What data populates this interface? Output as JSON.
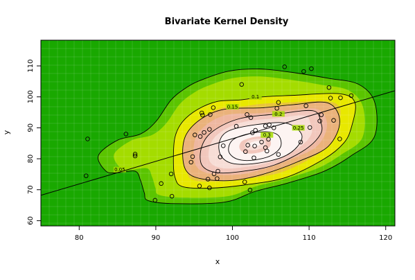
{
  "chart_data": {
    "type": "scatter",
    "title": "Bivariate Kernel Density",
    "xlabel": "x",
    "ylabel": "y",
    "xlim": [
      75,
      121.2
    ],
    "ylim": [
      58.3,
      118.3
    ],
    "x_ticks": [
      80,
      90,
      100,
      110,
      120
    ],
    "x_tick_labels": [
      "80",
      "90",
      "100",
      "110",
      "120"
    ],
    "y_ticks": [
      60,
      70,
      80,
      90,
      100,
      110
    ],
    "y_tick_labels": [
      "60",
      "70",
      "80",
      "90",
      "100",
      "110"
    ],
    "density_peak": {
      "x": 103,
      "y": 85
    },
    "density_colors": [
      "#19a800",
      "#5ac400",
      "#a4dc00",
      "#e8e800",
      "#e8c43a",
      "#eab27a",
      "#eeb7a0",
      "#f2c7bc",
      "#f7ddd6",
      "#fdf4f2"
    ],
    "contours": [
      {
        "level": "0.05",
        "label_at": [
          85.3,
          76.5
        ],
        "points": [
          [
            118.5,
            87
          ],
          [
            118.6,
            98
          ],
          [
            116.5,
            104
          ],
          [
            112.5,
            106
          ],
          [
            107.5,
            108
          ],
          [
            103.5,
            109
          ],
          [
            99.5,
            108.3
          ],
          [
            96,
            105.5
          ],
          [
            94,
            103
          ],
          [
            92,
            99
          ],
          [
            90,
            92
          ],
          [
            88,
            88
          ],
          [
            85,
            86
          ],
          [
            82.5,
            81
          ],
          [
            83.5,
            76
          ],
          [
            85,
            75.5
          ],
          [
            87.3,
            76
          ],
          [
            88,
            73
          ],
          [
            88.5,
            69
          ],
          [
            89,
            66.5
          ],
          [
            92.5,
            65.5
          ],
          [
            99,
            66
          ],
          [
            103,
            69.5
          ],
          [
            107,
            72
          ],
          [
            112,
            76
          ],
          [
            115.5,
            81
          ]
        ]
      },
      {
        "level": "0.1",
        "label_at": [
          103,
          100
        ],
        "points": [
          [
            115.5,
            90
          ],
          [
            116,
            98
          ],
          [
            114,
            101
          ],
          [
            108,
            100.5
          ],
          [
            104,
            100
          ],
          [
            101,
            99
          ],
          [
            98,
            98.5
          ],
          [
            95.5,
            96
          ],
          [
            93.5,
            92
          ],
          [
            92.5,
            87
          ],
          [
            92.3,
            80
          ],
          [
            92.5,
            74
          ],
          [
            93.5,
            71
          ],
          [
            97,
            70.5
          ],
          [
            101.5,
            71.5
          ],
          [
            107,
            74
          ],
          [
            112,
            80
          ],
          [
            114.5,
            85
          ]
        ]
      },
      {
        "level": "0.15",
        "label_at": [
          100,
          96.8
        ],
        "points": [
          [
            114,
            92
          ],
          [
            112.5,
            98
          ],
          [
            108,
            97.5
          ],
          [
            104,
            96.5
          ],
          [
            99,
            96
          ],
          [
            96,
            93
          ],
          [
            94,
            88
          ],
          [
            93.5,
            82
          ],
          [
            94,
            76
          ],
          [
            96,
            73.5
          ],
          [
            100,
            73
          ],
          [
            104,
            75
          ],
          [
            108.5,
            79
          ],
          [
            112.5,
            84
          ]
        ]
      },
      {
        "level": "0.2",
        "label_at": [
          106,
          94.5
        ],
        "points": [
          [
            111.5,
            92
          ],
          [
            110.5,
            95.5
          ],
          [
            106,
            94.5
          ],
          [
            101,
            93
          ],
          [
            97.5,
            89
          ],
          [
            96,
            84
          ],
          [
            96,
            78
          ],
          [
            98,
            75.5
          ],
          [
            101.5,
            76
          ],
          [
            105.5,
            78
          ],
          [
            109.5,
            83
          ],
          [
            111.5,
            88
          ]
        ]
      },
      {
        "level": "0.25",
        "label_at": [
          108.6,
          90
        ],
        "points": [
          [
            109,
            88
          ],
          [
            107,
            91.5
          ],
          [
            103,
            91
          ],
          [
            99.5,
            89
          ],
          [
            98.3,
            85.5
          ],
          [
            98.5,
            81
          ],
          [
            100,
            78.5
          ],
          [
            103,
            78.5
          ],
          [
            106.5,
            80.5
          ],
          [
            108.5,
            84
          ]
        ]
      },
      {
        "level": "0.3",
        "label_at": [
          104.5,
          87.7
        ],
        "points": [
          [
            106,
            87.5
          ],
          [
            104.5,
            88.7
          ],
          [
            102,
            88
          ],
          [
            100,
            86
          ],
          [
            99.5,
            82.5
          ],
          [
            100.5,
            80
          ],
          [
            102.5,
            79.5
          ],
          [
            105,
            81
          ],
          [
            106.3,
            84
          ]
        ]
      }
    ],
    "points": [
      [
        80.9,
        74.5
      ],
      [
        81.1,
        86.4
      ],
      [
        86.1,
        88
      ],
      [
        87.3,
        81.5
      ],
      [
        87.3,
        80.9
      ],
      [
        89.9,
        66.6
      ],
      [
        90.7,
        72
      ],
      [
        92,
        75.1
      ],
      [
        92.1,
        67.9
      ],
      [
        94.6,
        78.9
      ],
      [
        94.8,
        80.7
      ],
      [
        95.1,
        87.7
      ],
      [
        95.7,
        71.2
      ],
      [
        95.8,
        87.2
      ],
      [
        96,
        94.8
      ],
      [
        96.1,
        94.1
      ],
      [
        96.3,
        88.5
      ],
      [
        96.8,
        73.4
      ],
      [
        97,
        70.6
      ],
      [
        97,
        89.5
      ],
      [
        97.1,
        94.3
      ],
      [
        97.5,
        96.5
      ],
      [
        97.6,
        75.1
      ],
      [
        98,
        73.6
      ],
      [
        98.1,
        76
      ],
      [
        98.4,
        80.6
      ],
      [
        98.8,
        84.2
      ],
      [
        100.5,
        90.5
      ],
      [
        101.2,
        104
      ],
      [
        101.6,
        72.5
      ],
      [
        101.7,
        82.3
      ],
      [
        101.9,
        94.3
      ],
      [
        102,
        84.4
      ],
      [
        102.3,
        69.9
      ],
      [
        102.4,
        93.3
      ],
      [
        102.6,
        88.4
      ],
      [
        102.8,
        80.3
      ],
      [
        102.9,
        84.1
      ],
      [
        103,
        89.2
      ],
      [
        103.8,
        85.4
      ],
      [
        104.3,
        90.6
      ],
      [
        104.3,
        83.6
      ],
      [
        104.5,
        82.5
      ],
      [
        104.7,
        86.3
      ],
      [
        104.8,
        91
      ],
      [
        105.4,
        90
      ],
      [
        105.8,
        96.3
      ],
      [
        106,
        98.2
      ],
      [
        106,
        81.4
      ],
      [
        106.8,
        109.7
      ],
      [
        108.9,
        85.4
      ],
      [
        109.3,
        108.2
      ],
      [
        109.6,
        97.1
      ],
      [
        110.1,
        90.1
      ],
      [
        110.3,
        109.1
      ],
      [
        111.4,
        92.2
      ],
      [
        111.6,
        94.2
      ],
      [
        112.6,
        103
      ],
      [
        112.8,
        99.6
      ],
      [
        113.2,
        92.4
      ],
      [
        114,
        86.4
      ],
      [
        114.1,
        99.7
      ],
      [
        115.5,
        100.4
      ]
    ],
    "regression_line": {
      "x": [
        75,
        121.2
      ],
      "y": [
        68.2,
        102
      ]
    }
  }
}
